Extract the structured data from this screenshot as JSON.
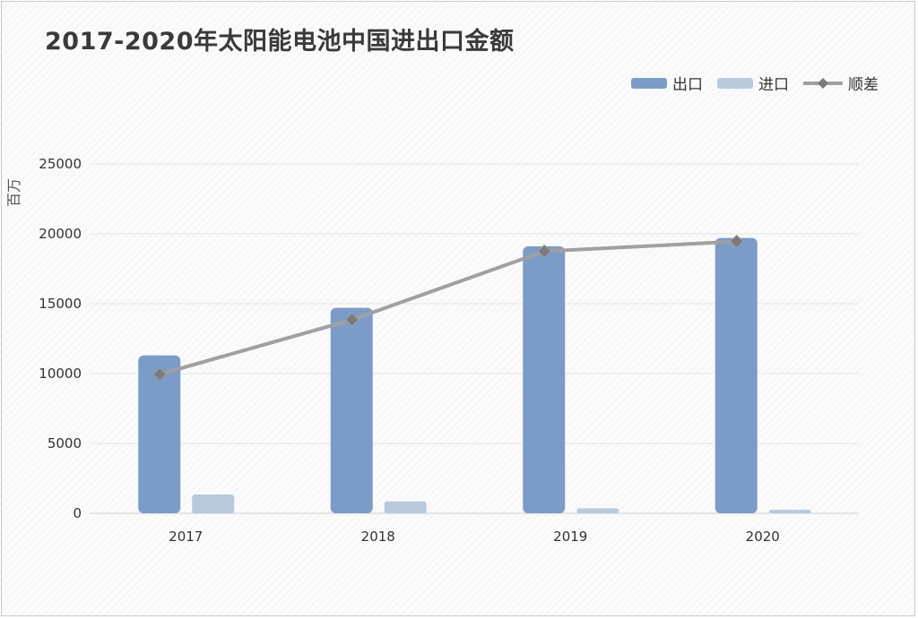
{
  "chart_data": {
    "type": "bar",
    "title": "2017-2020年太阳能电池中国进出口金额",
    "ylabel": "百万",
    "xlabel": "",
    "categories": [
      "2017",
      "2018",
      "2019",
      "2020"
    ],
    "ylim": [
      0,
      25000
    ],
    "yticks": [
      0,
      5000,
      10000,
      15000,
      20000,
      25000
    ],
    "grid": true,
    "legend_position": "top-right",
    "series": [
      {
        "name": "出口",
        "type": "bar",
        "color": "#7b9cc8",
        "values": [
          11300,
          14700,
          19100,
          19700
        ]
      },
      {
        "name": "进口",
        "type": "bar",
        "color": "#b8cadb",
        "values": [
          1350,
          850,
          350,
          250
        ]
      },
      {
        "name": "顺差",
        "type": "line",
        "color": "#a0a0a0",
        "marker": "diamond",
        "values": [
          9950,
          13850,
          18750,
          19450
        ]
      }
    ]
  }
}
